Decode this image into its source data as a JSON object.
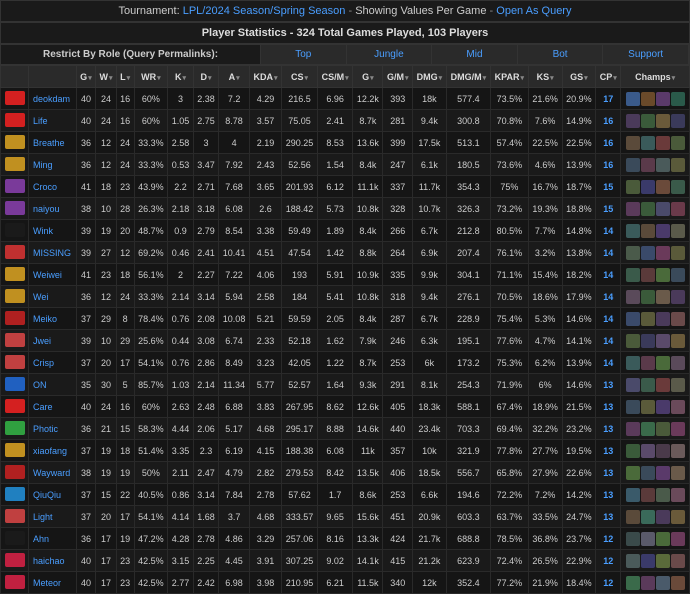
{
  "header": {
    "label_tournament": "Tournament:",
    "tournament": "LPL/2024 Season/Spring Season",
    "showing": "Showing Values Per Game",
    "open_query": "Open As Query"
  },
  "subheader": "Player Statistics - 324 Total Games Played, 103 Players",
  "role_restrict_label": "Restrict By Role (Query Permalinks):",
  "roles": [
    "Top",
    "Jungle",
    "Mid",
    "Bot",
    "Support"
  ],
  "columns": [
    "",
    "",
    "G",
    "W",
    "L",
    "WR",
    "K",
    "D",
    "A",
    "KDA",
    "CS",
    "CS/M",
    "G",
    "G/M",
    "DMG",
    "DMG/M",
    "KPAR",
    "KS",
    "GS",
    "CP",
    "Champs"
  ],
  "rows": [
    {
      "team_color": "#d42020",
      "player": "deokdam",
      "g": "40",
      "w": "24",
      "l": "16",
      "wr": "60%",
      "k": "3",
      "d": "2.38",
      "a": "7.2",
      "kda": "4.29",
      "cs": "216.5",
      "csm": "6.96",
      "gold": "12.2k",
      "gm": "393",
      "dmg": "18k",
      "dmgm": "577.4",
      "kpar": "73.5%",
      "ks": "21.6%",
      "gs": "20.9%",
      "cp": "17",
      "champs": [
        "#3a5a8a",
        "#6a4a2a",
        "#5a3a6a",
        "#2a5a4a"
      ]
    },
    {
      "team_color": "#d42020",
      "player": "Life",
      "g": "40",
      "w": "24",
      "l": "16",
      "wr": "60%",
      "k": "1.05",
      "d": "2.75",
      "a": "8.78",
      "kda": "3.57",
      "cs": "75.05",
      "csm": "2.41",
      "gold": "8.7k",
      "gm": "281",
      "dmg": "9.4k",
      "dmgm": "300.8",
      "kpar": "70.8%",
      "ks": "7.6%",
      "gs": "14.9%",
      "cp": "16",
      "champs": [
        "#4a3a5a",
        "#3a5a3a",
        "#6a5a3a",
        "#3a3a5a"
      ]
    },
    {
      "team_color": "#c09020",
      "player": "Breathe",
      "g": "36",
      "w": "12",
      "l": "24",
      "wr": "33.3%",
      "k": "2.58",
      "d": "3",
      "a": "4",
      "kda": "2.19",
      "cs": "290.25",
      "csm": "8.53",
      "gold": "13.6k",
      "gm": "399",
      "dmg": "17.5k",
      "dmgm": "513.1",
      "kpar": "57.4%",
      "ks": "22.5%",
      "gs": "22.5%",
      "cp": "16",
      "champs": [
        "#5a4a3a",
        "#3a5a5a",
        "#6a3a3a",
        "#4a5a3a"
      ]
    },
    {
      "team_color": "#c09020",
      "player": "Ming",
      "g": "36",
      "w": "12",
      "l": "24",
      "wr": "33.3%",
      "k": "0.53",
      "d": "3.47",
      "a": "7.92",
      "kda": "2.43",
      "cs": "52.56",
      "csm": "1.54",
      "gold": "8.4k",
      "gm": "247",
      "dmg": "6.1k",
      "dmgm": "180.5",
      "kpar": "73.6%",
      "ks": "4.6%",
      "gs": "13.9%",
      "cp": "16",
      "champs": [
        "#3a4a5a",
        "#5a3a4a",
        "#4a5a5a",
        "#5a5a3a"
      ]
    },
    {
      "team_color": "#7a3a9a",
      "player": "Croco",
      "g": "41",
      "w": "18",
      "l": "23",
      "wr": "43.9%",
      "k": "2.2",
      "d": "2.71",
      "a": "7.68",
      "kda": "3.65",
      "cs": "201.93",
      "csm": "6.12",
      "gold": "11.1k",
      "gm": "337",
      "dmg": "11.7k",
      "dmgm": "354.3",
      "kpar": "75%",
      "ks": "16.7%",
      "gs": "18.7%",
      "cp": "15",
      "champs": [
        "#4a5a3a",
        "#3a3a6a",
        "#6a4a3a",
        "#3a5a4a"
      ]
    },
    {
      "team_color": "#7a3a9a",
      "player": "naiyou",
      "g": "38",
      "w": "10",
      "l": "28",
      "wr": "26.3%",
      "k": "2.18",
      "d": "3.18",
      "a": "6.08",
      "kda": "2.6",
      "cs": "188.42",
      "csm": "5.73",
      "gold": "10.8k",
      "gm": "328",
      "dmg": "10.7k",
      "dmgm": "326.3",
      "kpar": "73.2%",
      "ks": "19.3%",
      "gs": "18.8%",
      "cp": "15",
      "champs": [
        "#5a3a5a",
        "#3a5a3a",
        "#4a4a6a",
        "#6a3a4a"
      ]
    },
    {
      "team_color": "#1a1a1a",
      "player": "Wink",
      "g": "39",
      "w": "19",
      "l": "20",
      "wr": "48.7%",
      "k": "0.9",
      "d": "2.79",
      "a": "8.54",
      "kda": "3.38",
      "cs": "59.49",
      "csm": "1.89",
      "gold": "8.4k",
      "gm": "266",
      "dmg": "6.7k",
      "dmgm": "212.8",
      "kpar": "80.5%",
      "ks": "7.7%",
      "gs": "14.8%",
      "cp": "14",
      "champs": [
        "#3a5a5a",
        "#5a4a3a",
        "#4a3a6a",
        "#5a5a4a"
      ]
    },
    {
      "team_color": "#c03030",
      "player": "MISSING",
      "g": "39",
      "w": "27",
      "l": "12",
      "wr": "69.2%",
      "k": "0.46",
      "d": "2.41",
      "a": "10.41",
      "kda": "4.51",
      "cs": "47.54",
      "csm": "1.42",
      "gold": "8.8k",
      "gm": "264",
      "dmg": "6.9k",
      "dmgm": "207.4",
      "kpar": "76.1%",
      "ks": "3.2%",
      "gs": "13.8%",
      "cp": "14",
      "champs": [
        "#4a5a4a",
        "#3a4a6a",
        "#6a3a5a",
        "#5a5a3a"
      ]
    },
    {
      "team_color": "#c09020",
      "player": "Weiwei",
      "g": "41",
      "w": "23",
      "l": "18",
      "wr": "56.1%",
      "k": "2",
      "d": "2.27",
      "a": "7.22",
      "kda": "4.06",
      "cs": "193",
      "csm": "5.91",
      "gold": "10.9k",
      "gm": "335",
      "dmg": "9.9k",
      "dmgm": "304.1",
      "kpar": "71.1%",
      "ks": "15.4%",
      "gs": "18.2%",
      "cp": "14",
      "champs": [
        "#3a5a4a",
        "#5a3a3a",
        "#4a6a3a",
        "#3a4a5a"
      ]
    },
    {
      "team_color": "#c09020",
      "player": "Wei",
      "g": "36",
      "w": "12",
      "l": "24",
      "wr": "33.3%",
      "k": "2.14",
      "d": "3.14",
      "a": "5.94",
      "kda": "2.58",
      "cs": "184",
      "csm": "5.41",
      "gold": "10.8k",
      "gm": "318",
      "dmg": "9.4k",
      "dmgm": "276.1",
      "kpar": "70.5%",
      "ks": "18.6%",
      "gs": "17.9%",
      "cp": "14",
      "champs": [
        "#5a4a5a",
        "#3a5a3a",
        "#6a5a4a",
        "#4a3a5a"
      ]
    },
    {
      "team_color": "#b02020",
      "player": "Meiko",
      "g": "37",
      "w": "29",
      "l": "8",
      "wr": "78.4%",
      "k": "0.76",
      "d": "2.08",
      "a": "10.08",
      "kda": "5.21",
      "cs": "59.59",
      "csm": "2.05",
      "gold": "8.4k",
      "gm": "287",
      "dmg": "6.7k",
      "dmgm": "228.9",
      "kpar": "75.4%",
      "ks": "5.3%",
      "gs": "14.6%",
      "cp": "14",
      "champs": [
        "#3a4a6a",
        "#5a5a3a",
        "#4a3a5a",
        "#6a4a4a"
      ]
    },
    {
      "team_color": "#c04040",
      "player": "Jwei",
      "g": "39",
      "w": "10",
      "l": "29",
      "wr": "25.6%",
      "k": "0.44",
      "d": "3.08",
      "a": "6.74",
      "kda": "2.33",
      "cs": "52.18",
      "csm": "1.62",
      "gold": "7.9k",
      "gm": "246",
      "dmg": "6.3k",
      "dmgm": "195.1",
      "kpar": "77.6%",
      "ks": "4.7%",
      "gs": "14.1%",
      "cp": "14",
      "champs": [
        "#4a5a3a",
        "#3a3a5a",
        "#5a4a6a",
        "#6a5a3a"
      ]
    },
    {
      "team_color": "#c04040",
      "player": "Crisp",
      "g": "37",
      "w": "20",
      "l": "17",
      "wr": "54.1%",
      "k": "0.76",
      "d": "2.86",
      "a": "8.49",
      "kda": "3.23",
      "cs": "42.05",
      "csm": "1.22",
      "gold": "8.7k",
      "gm": "253",
      "dmg": "6k",
      "dmgm": "173.2",
      "kpar": "75.3%",
      "ks": "6.2%",
      "gs": "13.9%",
      "cp": "14",
      "champs": [
        "#3a5a5a",
        "#5a3a4a",
        "#4a6a3a",
        "#5a4a5a"
      ]
    },
    {
      "team_color": "#2060c0",
      "player": "ON",
      "g": "35",
      "w": "30",
      "l": "5",
      "wr": "85.7%",
      "k": "1.03",
      "d": "2.14",
      "a": "11.34",
      "kda": "5.77",
      "cs": "52.57",
      "csm": "1.64",
      "gold": "9.3k",
      "gm": "291",
      "dmg": "8.1k",
      "dmgm": "254.3",
      "kpar": "71.9%",
      "ks": "6%",
      "gs": "14.6%",
      "cp": "13",
      "champs": [
        "#4a4a6a",
        "#3a5a4a",
        "#6a3a3a",
        "#5a5a4a"
      ]
    },
    {
      "team_color": "#d42020",
      "player": "Care",
      "g": "40",
      "w": "24",
      "l": "16",
      "wr": "60%",
      "k": "2.63",
      "d": "2.48",
      "a": "6.88",
      "kda": "3.83",
      "cs": "267.95",
      "csm": "8.62",
      "gold": "12.6k",
      "gm": "405",
      "dmg": "18.3k",
      "dmgm": "588.1",
      "kpar": "67.4%",
      "ks": "18.9%",
      "gs": "21.5%",
      "cp": "13",
      "champs": [
        "#3a4a5a",
        "#5a5a3a",
        "#4a3a6a",
        "#6a4a5a"
      ]
    },
    {
      "team_color": "#30a040",
      "player": "Photic",
      "g": "36",
      "w": "21",
      "l": "15",
      "wr": "58.3%",
      "k": "4.44",
      "d": "2.06",
      "a": "5.17",
      "kda": "4.68",
      "cs": "295.17",
      "csm": "8.88",
      "gold": "14.6k",
      "gm": "440",
      "dmg": "23.4k",
      "dmgm": "703.3",
      "kpar": "69.4%",
      "ks": "32.2%",
      "gs": "23.2%",
      "cp": "13",
      "champs": [
        "#5a3a5a",
        "#3a6a4a",
        "#4a5a3a",
        "#6a3a5a"
      ]
    },
    {
      "team_color": "#c09020",
      "player": "xiaofang",
      "g": "37",
      "w": "19",
      "l": "18",
      "wr": "51.4%",
      "k": "3.35",
      "d": "2.3",
      "a": "6.19",
      "kda": "4.15",
      "cs": "188.38",
      "csm": "6.08",
      "gold": "11k",
      "gm": "357",
      "dmg": "10k",
      "dmgm": "321.9",
      "kpar": "77.8%",
      "ks": "27.7%",
      "gs": "19.5%",
      "cp": "13",
      "champs": [
        "#3a5a3a",
        "#5a4a6a",
        "#4a3a4a",
        "#6a5a5a"
      ]
    },
    {
      "team_color": "#b02020",
      "player": "Wayward",
      "g": "38",
      "w": "19",
      "l": "19",
      "wr": "50%",
      "k": "2.11",
      "d": "2.47",
      "a": "4.79",
      "kda": "2.82",
      "cs": "279.53",
      "csm": "8.42",
      "gold": "13.5k",
      "gm": "406",
      "dmg": "18.5k",
      "dmgm": "556.7",
      "kpar": "65.8%",
      "ks": "27.9%",
      "gs": "22.6%",
      "cp": "13",
      "champs": [
        "#4a6a3a",
        "#3a4a5a",
        "#5a3a6a",
        "#6a5a4a"
      ]
    },
    {
      "team_color": "#2080c0",
      "player": "QiuQiu",
      "g": "37",
      "w": "15",
      "l": "22",
      "wr": "40.5%",
      "k": "0.86",
      "d": "3.14",
      "a": "7.84",
      "kda": "2.78",
      "cs": "57.62",
      "csm": "1.7",
      "gold": "8.6k",
      "gm": "253",
      "dmg": "6.6k",
      "dmgm": "194.6",
      "kpar": "72.2%",
      "ks": "7.2%",
      "gs": "14.2%",
      "cp": "13",
      "champs": [
        "#3a5a6a",
        "#5a3a3a",
        "#4a5a4a",
        "#6a4a5a"
      ]
    },
    {
      "team_color": "#c04040",
      "player": "Light",
      "g": "37",
      "w": "20",
      "l": "17",
      "wr": "54.1%",
      "k": "4.14",
      "d": "1.68",
      "a": "3.7",
      "kda": "4.68",
      "cs": "333.57",
      "csm": "9.65",
      "gold": "15.6k",
      "gm": "451",
      "dmg": "20.9k",
      "dmgm": "603.3",
      "kpar": "63.7%",
      "ks": "33.5%",
      "gs": "24.7%",
      "cp": "13",
      "champs": [
        "#5a4a3a",
        "#3a6a5a",
        "#4a3a5a",
        "#6a5a3a"
      ]
    },
    {
      "team_color": "#1a1a1a",
      "player": "Ahn",
      "g": "36",
      "w": "17",
      "l": "19",
      "wr": "47.2%",
      "k": "4.28",
      "d": "2.78",
      "a": "4.86",
      "kda": "3.29",
      "cs": "257.06",
      "csm": "8.16",
      "gold": "13.3k",
      "gm": "424",
      "dmg": "21.7k",
      "dmgm": "688.8",
      "kpar": "78.5%",
      "ks": "36.8%",
      "gs": "23.7%",
      "cp": "12",
      "champs": [
        "#3a4a4a",
        "#5a5a6a",
        "#4a6a3a",
        "#6a3a5a"
      ]
    },
    {
      "team_color": "#c02040",
      "player": "haichao",
      "g": "40",
      "w": "17",
      "l": "23",
      "wr": "42.5%",
      "k": "3.15",
      "d": "2.25",
      "a": "4.45",
      "kda": "3.91",
      "cs": "307.25",
      "csm": "9.02",
      "gold": "14.1k",
      "gm": "415",
      "dmg": "21.2k",
      "dmgm": "623.9",
      "kpar": "72.4%",
      "ks": "26.5%",
      "gs": "22.9%",
      "cp": "12",
      "champs": [
        "#4a5a5a",
        "#3a3a6a",
        "#5a6a3a",
        "#6a4a4a"
      ]
    },
    {
      "team_color": "#c02040",
      "player": "Meteor",
      "g": "40",
      "w": "17",
      "l": "23",
      "wr": "42.5%",
      "k": "2.77",
      "d": "2.42",
      "a": "6.98",
      "kda": "3.98",
      "cs": "210.95",
      "csm": "6.21",
      "gold": "11.5k",
      "gm": "340",
      "dmg": "12k",
      "dmgm": "352.4",
      "kpar": "77.2%",
      "ks": "21.9%",
      "gs": "18.4%",
      "cp": "12",
      "champs": [
        "#3a6a4a",
        "#5a3a5a",
        "#4a5a6a",
        "#6a4a3a"
      ]
    }
  ]
}
